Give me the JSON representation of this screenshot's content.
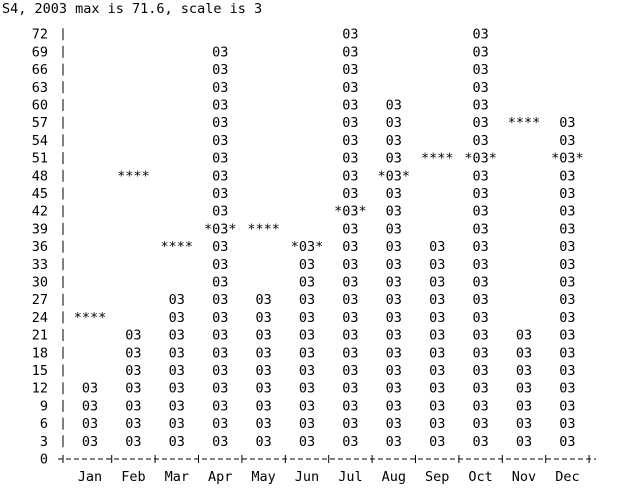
{
  "chart_data": {
    "type": "bar",
    "title": "S4, 2003 max is  71.6, scale is 3",
    "bar_label": "03",
    "max_value": 71.6,
    "scale": 3,
    "ylim": [
      0,
      72
    ],
    "y_ticks": [
      "0",
      "3",
      "6",
      "9",
      "12",
      "15",
      "18",
      "21",
      "24",
      "27",
      "30",
      "33",
      "36",
      "39",
      "42",
      "45",
      "48",
      "51",
      "54",
      "57",
      "60",
      "63",
      "66",
      "69",
      "72"
    ],
    "categories": [
      "Jan",
      "Feb",
      "Mar",
      "Apr",
      "May",
      "Jun",
      "Jul",
      "Aug",
      "Sep",
      "Oct",
      "Nov",
      "Dec"
    ],
    "series": [
      {
        "values": [
          12,
          21,
          27,
          69,
          27,
          36,
          72,
          60,
          36,
          72,
          21,
          57
        ]
      }
    ],
    "markers": [
      {
        "month": "Jan",
        "level": 24,
        "label": "****"
      },
      {
        "month": "Feb",
        "level": 48,
        "label": "****"
      },
      {
        "month": "Mar",
        "level": 36,
        "label": "****"
      },
      {
        "month": "Apr",
        "level": 39,
        "label": "*03*"
      },
      {
        "month": "May",
        "level": 39,
        "label": "****"
      },
      {
        "month": "Jun",
        "level": 36,
        "label": "*03*"
      },
      {
        "month": "Jul",
        "level": 42,
        "label": "*03*"
      },
      {
        "month": "Aug",
        "level": 48,
        "label": "*03*"
      },
      {
        "month": "Sep",
        "level": 51,
        "label": "****"
      },
      {
        "month": "Oct",
        "level": 51,
        "label": "*03*"
      },
      {
        "month": "Nov",
        "level": 57,
        "label": "****"
      },
      {
        "month": "Dec",
        "level": 51,
        "label": "*03*"
      }
    ],
    "grid": false,
    "legend": "none"
  }
}
